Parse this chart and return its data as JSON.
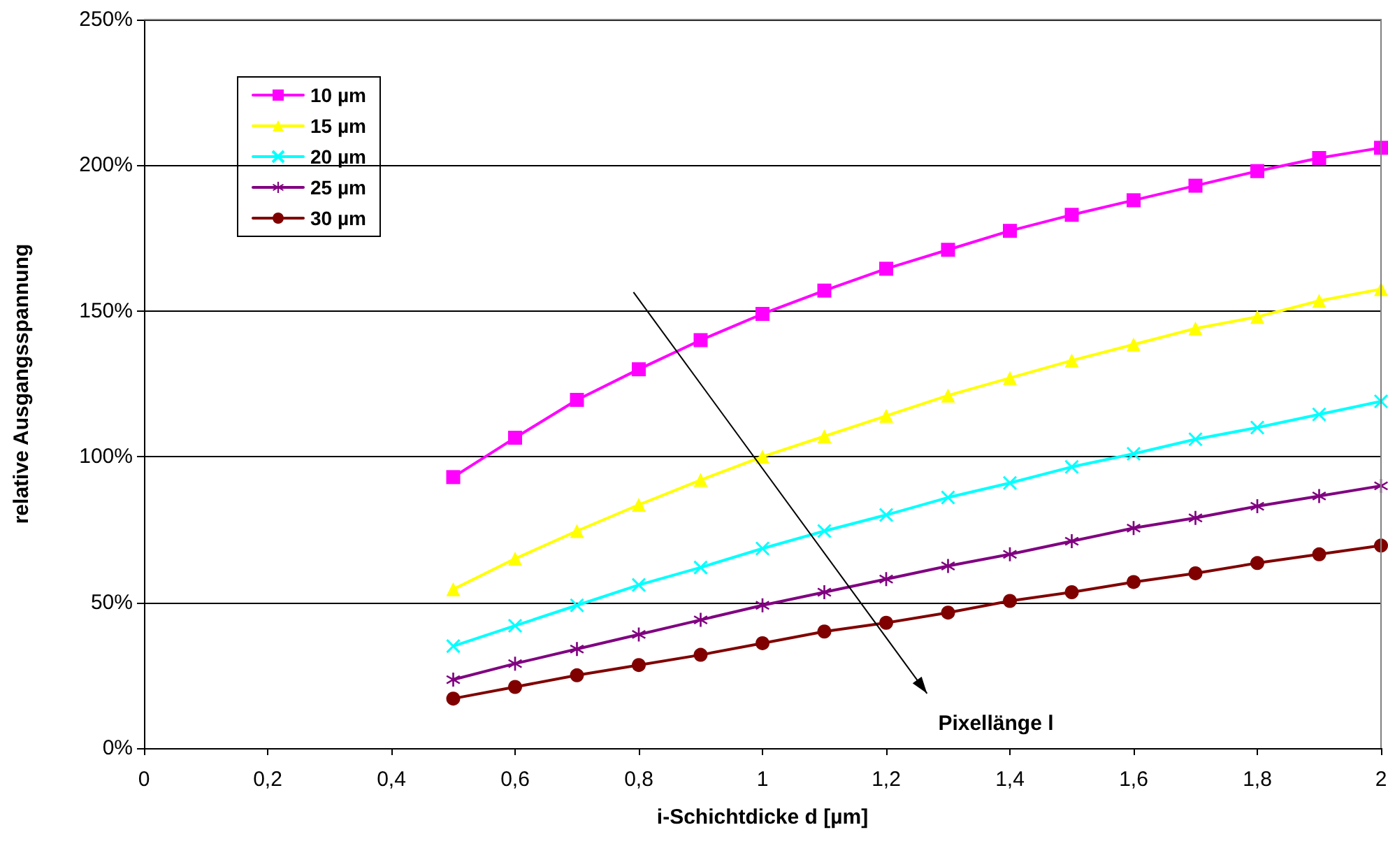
{
  "chart_data": {
    "type": "line",
    "xlabel": "i-Schichtdicke d [µm]",
    "ylabel": "relative Ausgangsspannung",
    "x": [
      0.5,
      0.6,
      0.7,
      0.8,
      0.9,
      1.0,
      1.1,
      1.2,
      1.3,
      1.4,
      1.5,
      1.6,
      1.7,
      1.8,
      1.9,
      2.0
    ],
    "series": [
      {
        "name": "10 µm",
        "color": "#ff00ff",
        "marker": "square",
        "values": [
          93,
          106.5,
          119.5,
          130,
          140,
          149,
          157,
          164.5,
          171,
          177.5,
          183,
          188,
          193,
          198,
          202.5,
          206
        ]
      },
      {
        "name": "15 µm",
        "color": "#ffff00",
        "marker": "triangle",
        "values": [
          54.5,
          65,
          74.5,
          83.5,
          92,
          100,
          107,
          114,
          121,
          127,
          133,
          138.5,
          144,
          148,
          153.5,
          157.5
        ]
      },
      {
        "name": "20 µm",
        "color": "#00ffff",
        "marker": "cross",
        "values": [
          35,
          42,
          49,
          56,
          62,
          68.5,
          74.5,
          80,
          86,
          91,
          96.5,
          101,
          106,
          110,
          114.5,
          119
        ]
      },
      {
        "name": "25 µm",
        "color": "#800080",
        "marker": "star",
        "values": [
          23.5,
          29,
          34,
          39,
          44,
          49,
          53.5,
          58,
          62.5,
          66.5,
          71,
          75.5,
          79,
          83,
          86.5,
          90
        ]
      },
      {
        "name": "30 µm",
        "color": "#800000",
        "marker": "circle",
        "values": [
          17,
          21,
          25,
          28.5,
          32,
          36,
          40,
          43,
          46.5,
          50.5,
          53.5,
          57,
          60,
          63.5,
          66.5,
          69.5
        ]
      }
    ],
    "xlim": [
      0,
      2
    ],
    "xticks": [
      0,
      {
        "value": 0.2,
        "label": "0,2"
      },
      {
        "value": 0.4,
        "label": "0,4"
      },
      {
        "value": 0.6,
        "label": "0,6"
      },
      {
        "value": 0.8,
        "label": "0,8"
      },
      1,
      {
        "value": 1.2,
        "label": "1,2"
      },
      {
        "value": 1.4,
        "label": "1,4"
      },
      {
        "value": 1.6,
        "label": "1,6"
      },
      {
        "value": 1.8,
        "label": "1,8"
      },
      2
    ],
    "ylim": [
      0,
      250
    ],
    "yticks": [
      {
        "value": 0,
        "label": "0%"
      },
      {
        "value": 50,
        "label": "50%"
      },
      {
        "value": 100,
        "label": "100%"
      },
      {
        "value": 150,
        "label": "150%"
      },
      {
        "value": 200,
        "label": "200%"
      },
      {
        "value": 250,
        "label": "250%"
      }
    ],
    "grid": "y",
    "legend": "top left",
    "line_style": "solid",
    "annotations": [
      "Pixellänge l"
    ]
  }
}
